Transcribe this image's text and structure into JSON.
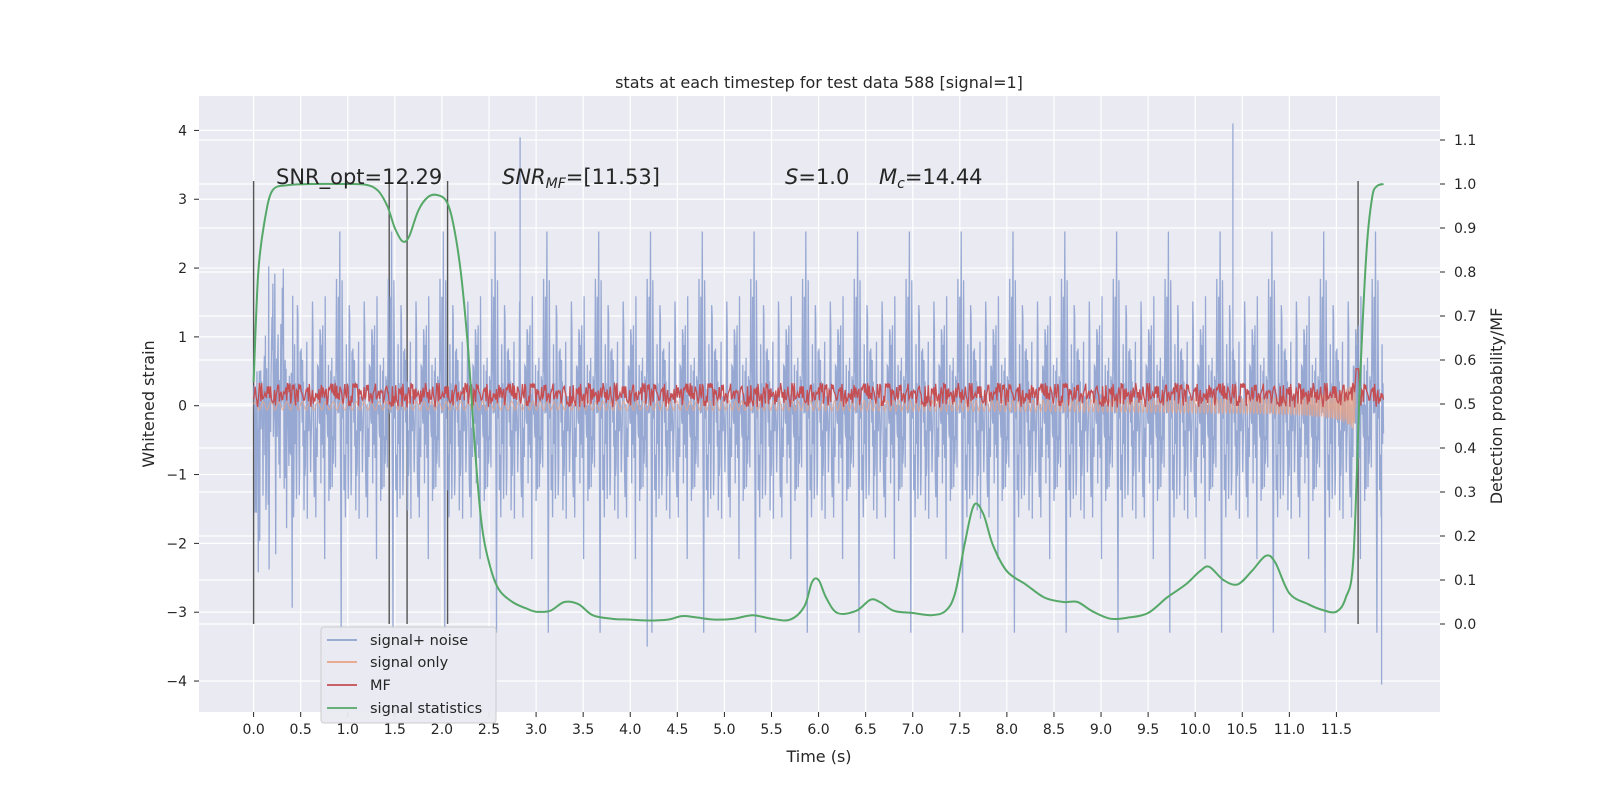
{
  "chart_data": {
    "type": "line",
    "title": "stats at each timestep for test data 588 [signal=1]",
    "xlabel": "Time (s)",
    "ylabel": "Whitened strain",
    "y2label": "Detection probability/MF",
    "xlim": [
      -0.58,
      12.6
    ],
    "ylim": [
      -4.45,
      4.5
    ],
    "y2lim": [
      -0.2,
      1.2
    ],
    "xticks": [
      "0.0",
      "0.5",
      "1.0",
      "1.5",
      "2.0",
      "2.5",
      "3.0",
      "3.5",
      "4.0",
      "4.5",
      "5.0",
      "5.5",
      "6.0",
      "6.5",
      "7.0",
      "7.5",
      "8.0",
      "8.5",
      "9.0",
      "9.5",
      "10.0",
      "10.5",
      "11.0",
      "11.5"
    ],
    "xtick_values": [
      0,
      0.5,
      1,
      1.5,
      2,
      2.5,
      3,
      3.5,
      4,
      4.5,
      5,
      5.5,
      6,
      6.5,
      7,
      7.5,
      8,
      8.5,
      9,
      9.5,
      10,
      10.5,
      11,
      11.5
    ],
    "yticks": [
      "4",
      "3",
      "2",
      "1",
      "0",
      "−1",
      "−2",
      "−3",
      "−4"
    ],
    "ytick_values": [
      4,
      3,
      2,
      1,
      0,
      -1,
      -2,
      -3,
      -4
    ],
    "y2ticks": [
      "1.1",
      "1.0",
      "0.9",
      "0.8",
      "0.7",
      "0.6",
      "0.5",
      "0.4",
      "0.3",
      "0.2",
      "0.1",
      "0.0"
    ],
    "y2tick_values": [
      1.1,
      1.0,
      0.9,
      0.8,
      0.7,
      0.6,
      0.5,
      0.4,
      0.3,
      0.2,
      0.1,
      0.0
    ],
    "grid": true,
    "legend_placement": "lower-left",
    "annotations": {
      "snr_opt": "SNR_opt=12.29",
      "snr_mf": "SNR",
      "snr_mf_sub": "MF",
      "snr_mf_val": "=[11.53]",
      "s": "S",
      "s_val": "=1.0",
      "mc": "M",
      "mc_sub": "c",
      "mc_val": "=14.44"
    },
    "vertical_markers": [
      0.0,
      1.44,
      1.63,
      2.06,
      11.73
    ],
    "series": [
      {
        "name": "signal+ noise",
        "color": "#8ea2cf",
        "x_range": [
          0.0,
          12.0
        ],
        "typical_amplitude": 2.2,
        "extreme_values": [
          [
            2.83,
            3.9
          ],
          [
            10.4,
            4.1
          ],
          [
            11.98,
            -4.05
          ],
          [
            4.18,
            -3.5
          ]
        ]
      },
      {
        "name": "signal only",
        "color": "#e8a386",
        "x_range": [
          0.0,
          11.7
        ],
        "peak_amplitude": 2.2
      },
      {
        "name": "MF",
        "color": "#c44e52",
        "x_range": [
          0.0,
          12.0
        ],
        "baseline": 0.52,
        "typical_range": [
          0.5,
          0.54
        ],
        "peak": [
          11.72,
          0.58
        ]
      },
      {
        "name": "signal statistics",
        "color": "#55a868",
        "points": [
          [
            0.0,
            0.55
          ],
          [
            0.05,
            0.8
          ],
          [
            0.12,
            0.92
          ],
          [
            0.2,
            0.985
          ],
          [
            0.35,
            0.997
          ],
          [
            0.6,
            1.0
          ],
          [
            1.0,
            1.0
          ],
          [
            1.2,
            0.998
          ],
          [
            1.32,
            0.985
          ],
          [
            1.42,
            0.95
          ],
          [
            1.5,
            0.9
          ],
          [
            1.58,
            0.87
          ],
          [
            1.65,
            0.88
          ],
          [
            1.75,
            0.94
          ],
          [
            1.85,
            0.97
          ],
          [
            1.95,
            0.975
          ],
          [
            2.05,
            0.96
          ],
          [
            2.12,
            0.91
          ],
          [
            2.2,
            0.8
          ],
          [
            2.28,
            0.62
          ],
          [
            2.35,
            0.4
          ],
          [
            2.42,
            0.23
          ],
          [
            2.5,
            0.14
          ],
          [
            2.6,
            0.08
          ],
          [
            2.75,
            0.05
          ],
          [
            2.9,
            0.035
          ],
          [
            3.0,
            0.028
          ],
          [
            3.15,
            0.03
          ],
          [
            3.3,
            0.05
          ],
          [
            3.45,
            0.045
          ],
          [
            3.6,
            0.02
          ],
          [
            3.8,
            0.012
          ],
          [
            4.0,
            0.01
          ],
          [
            4.2,
            0.008
          ],
          [
            4.4,
            0.01
          ],
          [
            4.55,
            0.018
          ],
          [
            4.7,
            0.015
          ],
          [
            4.9,
            0.01
          ],
          [
            5.1,
            0.012
          ],
          [
            5.3,
            0.02
          ],
          [
            5.5,
            0.012
          ],
          [
            5.7,
            0.01
          ],
          [
            5.85,
            0.04
          ],
          [
            5.93,
            0.095
          ],
          [
            6.0,
            0.1
          ],
          [
            6.08,
            0.06
          ],
          [
            6.2,
            0.025
          ],
          [
            6.4,
            0.03
          ],
          [
            6.55,
            0.055
          ],
          [
            6.65,
            0.05
          ],
          [
            6.8,
            0.03
          ],
          [
            7.0,
            0.025
          ],
          [
            7.2,
            0.02
          ],
          [
            7.35,
            0.03
          ],
          [
            7.45,
            0.07
          ],
          [
            7.55,
            0.18
          ],
          [
            7.65,
            0.27
          ],
          [
            7.75,
            0.25
          ],
          [
            7.85,
            0.18
          ],
          [
            8.0,
            0.12
          ],
          [
            8.2,
            0.09
          ],
          [
            8.4,
            0.06
          ],
          [
            8.6,
            0.05
          ],
          [
            8.75,
            0.05
          ],
          [
            8.9,
            0.03
          ],
          [
            9.1,
            0.012
          ],
          [
            9.3,
            0.015
          ],
          [
            9.5,
            0.025
          ],
          [
            9.7,
            0.06
          ],
          [
            9.9,
            0.09
          ],
          [
            10.05,
            0.12
          ],
          [
            10.15,
            0.13
          ],
          [
            10.3,
            0.1
          ],
          [
            10.45,
            0.09
          ],
          [
            10.6,
            0.12
          ],
          [
            10.75,
            0.155
          ],
          [
            10.85,
            0.14
          ],
          [
            11.0,
            0.07
          ],
          [
            11.2,
            0.045
          ],
          [
            11.35,
            0.032
          ],
          [
            11.5,
            0.028
          ],
          [
            11.6,
            0.06
          ],
          [
            11.68,
            0.15
          ],
          [
            11.75,
            0.55
          ],
          [
            11.82,
            0.85
          ],
          [
            11.88,
            0.97
          ],
          [
            11.93,
            0.995
          ],
          [
            12.0,
            1.0
          ]
        ]
      }
    ]
  }
}
